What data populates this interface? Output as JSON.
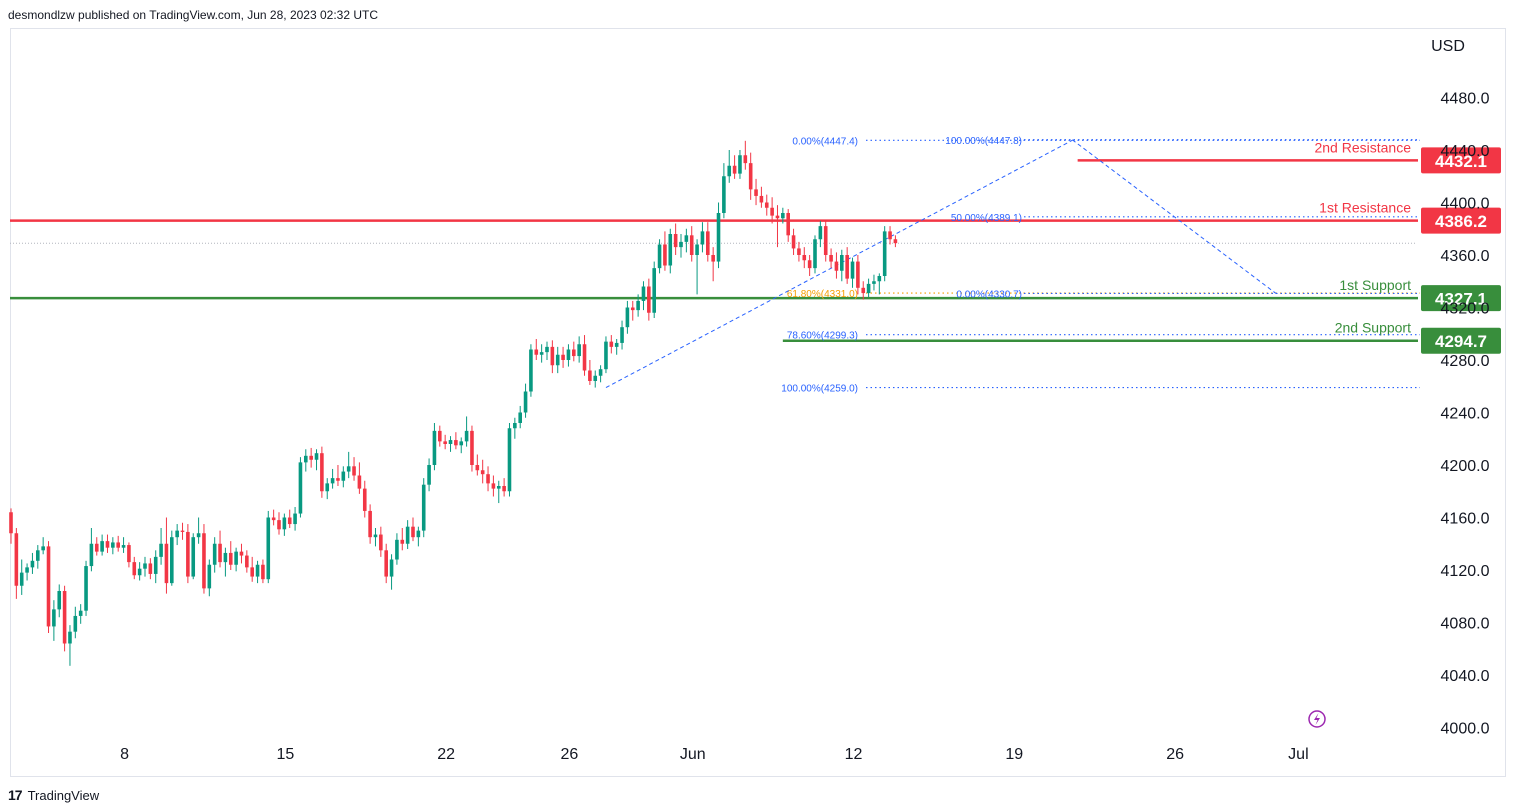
{
  "header": {
    "publish_text": "desmondlzw published on TradingView.com, Jun 28, 2023 02:32 UTC"
  },
  "footer": {
    "brand": "TradingView",
    "logo_glyph": "17"
  },
  "chart_data": {
    "type": "candlestick",
    "currency": "USD",
    "ylim": [
      4000,
      4520
    ],
    "y_ticks": [
      4000,
      4040,
      4080,
      4120,
      4160,
      4200,
      4240,
      4280,
      4320,
      4360,
      4400,
      4440,
      4480
    ],
    "y_tick_labels": [
      "4000.0",
      "4040.0",
      "4080.0",
      "4120.0",
      "4160.0",
      "4200.0",
      "4240.0",
      "4280.0",
      "4320.0",
      "4360.0",
      "4400.0",
      "4440.0",
      "4480.0"
    ],
    "x_labels": [
      {
        "bar": 21,
        "label": "8"
      },
      {
        "bar": 51,
        "label": "15"
      },
      {
        "bar": 81,
        "label": "22"
      },
      {
        "bar": 104,
        "label": "26"
      },
      {
        "bar": 127,
        "label": "Jun"
      },
      {
        "bar": 157,
        "label": "12"
      },
      {
        "bar": 187,
        "label": "19"
      },
      {
        "bar": 217,
        "label": "26"
      },
      {
        "bar": 240,
        "label": "Jul"
      }
    ],
    "levels": [
      {
        "name": "2nd Resistance",
        "price": 4432.1,
        "label": "4432.1",
        "color": "#f23645",
        "x_start_bar": 199
      },
      {
        "name": "1st Resistance",
        "price": 4386.2,
        "label": "4386.2",
        "color": "#f23645",
        "x_start_bar": -2
      },
      {
        "name": "1st Support",
        "price": 4327.1,
        "label": "4327.1",
        "color": "#388e3c",
        "x_start_bar": -2
      },
      {
        "name": "2nd Support",
        "price": 4294.7,
        "label": "4294.7",
        "color": "#388e3c",
        "x_start_bar": 144
      }
    ],
    "fib_left": [
      {
        "text": "0.00%(4447.4)",
        "price": 4447.4,
        "color": "#2962ff"
      },
      {
        "text": "61.80%(4331.0)",
        "price": 4331.0,
        "color": "#f59d00"
      },
      {
        "text": "78.60%(4299.3)",
        "price": 4299.3,
        "color": "#2962ff"
      },
      {
        "text": "100.00%(4259.0)",
        "price": 4259.0,
        "color": "#2962ff"
      }
    ],
    "fib_right": [
      {
        "text": "100.00%(4447.8)",
        "price": 4447.8,
        "color": "#2962ff"
      },
      {
        "text": "50.00%(4389.1)",
        "price": 4389.1,
        "color": "#2962ff"
      },
      {
        "text": "0.00%(4330.7)",
        "price": 4330.7,
        "color": "#2962ff"
      }
    ],
    "last_price": 4369,
    "colors": {
      "up": "#089981",
      "down": "#f23645",
      "grid_text": "#131722",
      "fib": "#2962ff",
      "fib_golden": "#f59d00"
    },
    "candles": [
      [
        4164,
        4167,
        4140,
        4148
      ],
      [
        4148,
        4152,
        4098,
        4108
      ],
      [
        4108,
        4128,
        4101,
        4118
      ],
      [
        4118,
        4125,
        4112,
        4122
      ],
      [
        4122,
        4133,
        4117,
        4127
      ],
      [
        4127,
        4139,
        4121,
        4135
      ],
      [
        4135,
        4145,
        4132,
        4138
      ],
      [
        4138,
        4142,
        4072,
        4077
      ],
      [
        4077,
        4097,
        4066,
        4090
      ],
      [
        4090,
        4109,
        4084,
        4104
      ],
      [
        4104,
        4108,
        4058,
        4064
      ],
      [
        4064,
        4078,
        4047,
        4073
      ],
      [
        4073,
        4092,
        4068,
        4085
      ],
      [
        4085,
        4094,
        4079,
        4089
      ],
      [
        4089,
        4127,
        4085,
        4123
      ],
      [
        4123,
        4152,
        4119,
        4140
      ],
      [
        4140,
        4145,
        4131,
        4134
      ],
      [
        4134,
        4147,
        4131,
        4142
      ],
      [
        4142,
        4147,
        4133,
        4137
      ],
      [
        4137,
        4145,
        4132,
        4141
      ],
      [
        4141,
        4146,
        4134,
        4137
      ],
      [
        4137,
        4145,
        4133,
        4139
      ],
      [
        4139,
        4141,
        4122,
        4126
      ],
      [
        4126,
        4130,
        4113,
        4116
      ],
      [
        4116,
        4126,
        4112,
        4121
      ],
      [
        4121,
        4130,
        4115,
        4125
      ],
      [
        4125,
        4129,
        4113,
        4117
      ],
      [
        4117,
        4135,
        4110,
        4130
      ],
      [
        4130,
        4152,
        4124,
        4140
      ],
      [
        4140,
        4160,
        4102,
        4110
      ],
      [
        4110,
        4150,
        4108,
        4145
      ],
      [
        4145,
        4155,
        4139,
        4150
      ],
      [
        4150,
        4156,
        4143,
        4149
      ],
      [
        4149,
        4155,
        4110,
        4115
      ],
      [
        4115,
        4148,
        4113,
        4145
      ],
      [
        4145,
        4160,
        4140,
        4148
      ],
      [
        4148,
        4155,
        4102,
        4106
      ],
      [
        4106,
        4128,
        4100,
        4124
      ],
      [
        4124,
        4145,
        4118,
        4140
      ],
      [
        4140,
        4150,
        4122,
        4126
      ],
      [
        4126,
        4137,
        4115,
        4133
      ],
      [
        4133,
        4142,
        4120,
        4124
      ],
      [
        4124,
        4137,
        4119,
        4134
      ],
      [
        4134,
        4140,
        4125,
        4131
      ],
      [
        4131,
        4135,
        4118,
        4122
      ],
      [
        4122,
        4130,
        4111,
        4115
      ],
      [
        4115,
        4127,
        4110,
        4124
      ],
      [
        4124,
        4128,
        4110,
        4113
      ],
      [
        4113,
        4165,
        4110,
        4160
      ],
      [
        4160,
        4166,
        4154,
        4158
      ],
      [
        4158,
        4164,
        4147,
        4151
      ],
      [
        4151,
        4163,
        4146,
        4160
      ],
      [
        4160,
        4166,
        4152,
        4155
      ],
      [
        4155,
        4168,
        4150,
        4163
      ],
      [
        4163,
        4206,
        4160,
        4202
      ],
      [
        4202,
        4212,
        4195,
        4207
      ],
      [
        4207,
        4213,
        4198,
        4204
      ],
      [
        4204,
        4212,
        4196,
        4209
      ],
      [
        4209,
        4214,
        4175,
        4180
      ],
      [
        4180,
        4190,
        4174,
        4186
      ],
      [
        4186,
        4197,
        4182,
        4190
      ],
      [
        4190,
        4200,
        4184,
        4188
      ],
      [
        4188,
        4199,
        4183,
        4195
      ],
      [
        4195,
        4210,
        4190,
        4199
      ],
      [
        4199,
        4206,
        4188,
        4192
      ],
      [
        4192,
        4202,
        4178,
        4182
      ],
      [
        4182,
        4188,
        4160,
        4165
      ],
      [
        4165,
        4170,
        4140,
        4145
      ],
      [
        4145,
        4152,
        4138,
        4147
      ],
      [
        4147,
        4153,
        4130,
        4135
      ],
      [
        4135,
        4140,
        4110,
        4115
      ],
      [
        4115,
        4132,
        4105,
        4128
      ],
      [
        4128,
        4148,
        4124,
        4143
      ],
      [
        4143,
        4152,
        4135,
        4140
      ],
      [
        4140,
        4158,
        4136,
        4153
      ],
      [
        4153,
        4160,
        4142,
        4145
      ],
      [
        4145,
        4153,
        4138,
        4150
      ],
      [
        4150,
        4190,
        4145,
        4185
      ],
      [
        4185,
        4205,
        4180,
        4200
      ],
      [
        4200,
        4232,
        4196,
        4226
      ],
      [
        4226,
        4230,
        4214,
        4218
      ],
      [
        4218,
        4223,
        4212,
        4216
      ],
      [
        4216,
        4222,
        4210,
        4219
      ],
      [
        4219,
        4225,
        4212,
        4215
      ],
      [
        4215,
        4221,
        4209,
        4218
      ],
      [
        4218,
        4237,
        4214,
        4226
      ],
      [
        4226,
        4230,
        4195,
        4200
      ],
      [
        4200,
        4208,
        4192,
        4196
      ],
      [
        4196,
        4204,
        4186,
        4193
      ],
      [
        4193,
        4199,
        4180,
        4186
      ],
      [
        4186,
        4192,
        4176,
        4182
      ],
      [
        4182,
        4188,
        4171,
        4184
      ],
      [
        4184,
        4190,
        4176,
        4180
      ],
      [
        4180,
        4232,
        4176,
        4228
      ],
      [
        4228,
        4236,
        4220,
        4232
      ],
      [
        4232,
        4245,
        4228,
        4240
      ],
      [
        4240,
        4262,
        4236,
        4256
      ],
      [
        4256,
        4292,
        4252,
        4288
      ],
      [
        4288,
        4296,
        4280,
        4284
      ],
      [
        4284,
        4292,
        4278,
        4286
      ],
      [
        4286,
        4294,
        4280,
        4290
      ],
      [
        4290,
        4295,
        4270,
        4276
      ],
      [
        4276,
        4290,
        4270,
        4284
      ],
      [
        4284,
        4290,
        4274,
        4280
      ],
      [
        4280,
        4292,
        4275,
        4288
      ],
      [
        4288,
        4294,
        4279,
        4283
      ],
      [
        4283,
        4298,
        4278,
        4292
      ],
      [
        4292,
        4299,
        4268,
        4272
      ],
      [
        4272,
        4280,
        4261,
        4264
      ],
      [
        4264,
        4272,
        4259,
        4268
      ],
      [
        4268,
        4276,
        4263,
        4273
      ],
      [
        4273,
        4298,
        4270,
        4294
      ],
      [
        4294,
        4299,
        4285,
        4290
      ],
      [
        4290,
        4296,
        4284,
        4293
      ],
      [
        4293,
        4310,
        4288,
        4305
      ],
      [
        4305,
        4325,
        4300,
        4320
      ],
      [
        4320,
        4325,
        4310,
        4318
      ],
      [
        4318,
        4330,
        4313,
        4325
      ],
      [
        4325,
        4340,
        4318,
        4336
      ],
      [
        4336,
        4342,
        4310,
        4316
      ],
      [
        4316,
        4355,
        4312,
        4350
      ],
      [
        4350,
        4372,
        4346,
        4368
      ],
      [
        4368,
        4378,
        4348,
        4352
      ],
      [
        4352,
        4380,
        4346,
        4376
      ],
      [
        4376,
        4384,
        4360,
        4366
      ],
      [
        4366,
        4376,
        4358,
        4370
      ],
      [
        4370,
        4380,
        4362,
        4375
      ],
      [
        4375,
        4382,
        4355,
        4360
      ],
      [
        4360,
        4372,
        4330,
        4368
      ],
      [
        4368,
        4385,
        4362,
        4378
      ],
      [
        4378,
        4385,
        4355,
        4360
      ],
      [
        4360,
        4366,
        4340,
        4355
      ],
      [
        4355,
        4400,
        4350,
        4392
      ],
      [
        4392,
        4430,
        4388,
        4420
      ],
      [
        4420,
        4440,
        4415,
        4428
      ],
      [
        4428,
        4436,
        4418,
        4422
      ],
      [
        4422,
        4440,
        4418,
        4436
      ],
      [
        4436,
        4447,
        4425,
        4430
      ],
      [
        4430,
        4438,
        4402,
        4410
      ],
      [
        4410,
        4418,
        4398,
        4405
      ],
      [
        4405,
        4412,
        4396,
        4400
      ],
      [
        4400,
        4406,
        4390,
        4396
      ],
      [
        4396,
        4404,
        4384,
        4390
      ],
      [
        4390,
        4398,
        4366,
        4388
      ],
      [
        4388,
        4396,
        4384,
        4392
      ],
      [
        4392,
        4395,
        4370,
        4375
      ],
      [
        4375,
        4380,
        4360,
        4365
      ],
      [
        4365,
        4370,
        4355,
        4360
      ],
      [
        4360,
        4366,
        4350,
        4356
      ],
      [
        4356,
        4360,
        4344,
        4350
      ],
      [
        4350,
        4375,
        4346,
        4372
      ],
      [
        4372,
        4386,
        4366,
        4382
      ],
      [
        4382,
        4386,
        4355,
        4360
      ],
      [
        4360,
        4365,
        4350,
        4355
      ],
      [
        4355,
        4362,
        4342,
        4348
      ],
      [
        4348,
        4364,
        4340,
        4360
      ],
      [
        4360,
        4366,
        4338,
        4342
      ],
      [
        4342,
        4358,
        4335,
        4355
      ],
      [
        4355,
        4360,
        4330,
        4335
      ],
      [
        4335,
        4340,
        4326,
        4331
      ],
      [
        4331,
        4342,
        4328,
        4338
      ],
      [
        4338,
        4345,
        4333,
        4340
      ],
      [
        4340,
        4346,
        4330,
        4344
      ],
      [
        4344,
        4382,
        4340,
        4378
      ],
      [
        4378,
        4382,
        4368,
        4372
      ],
      [
        4372,
        4375,
        4366,
        4369
      ]
    ]
  }
}
